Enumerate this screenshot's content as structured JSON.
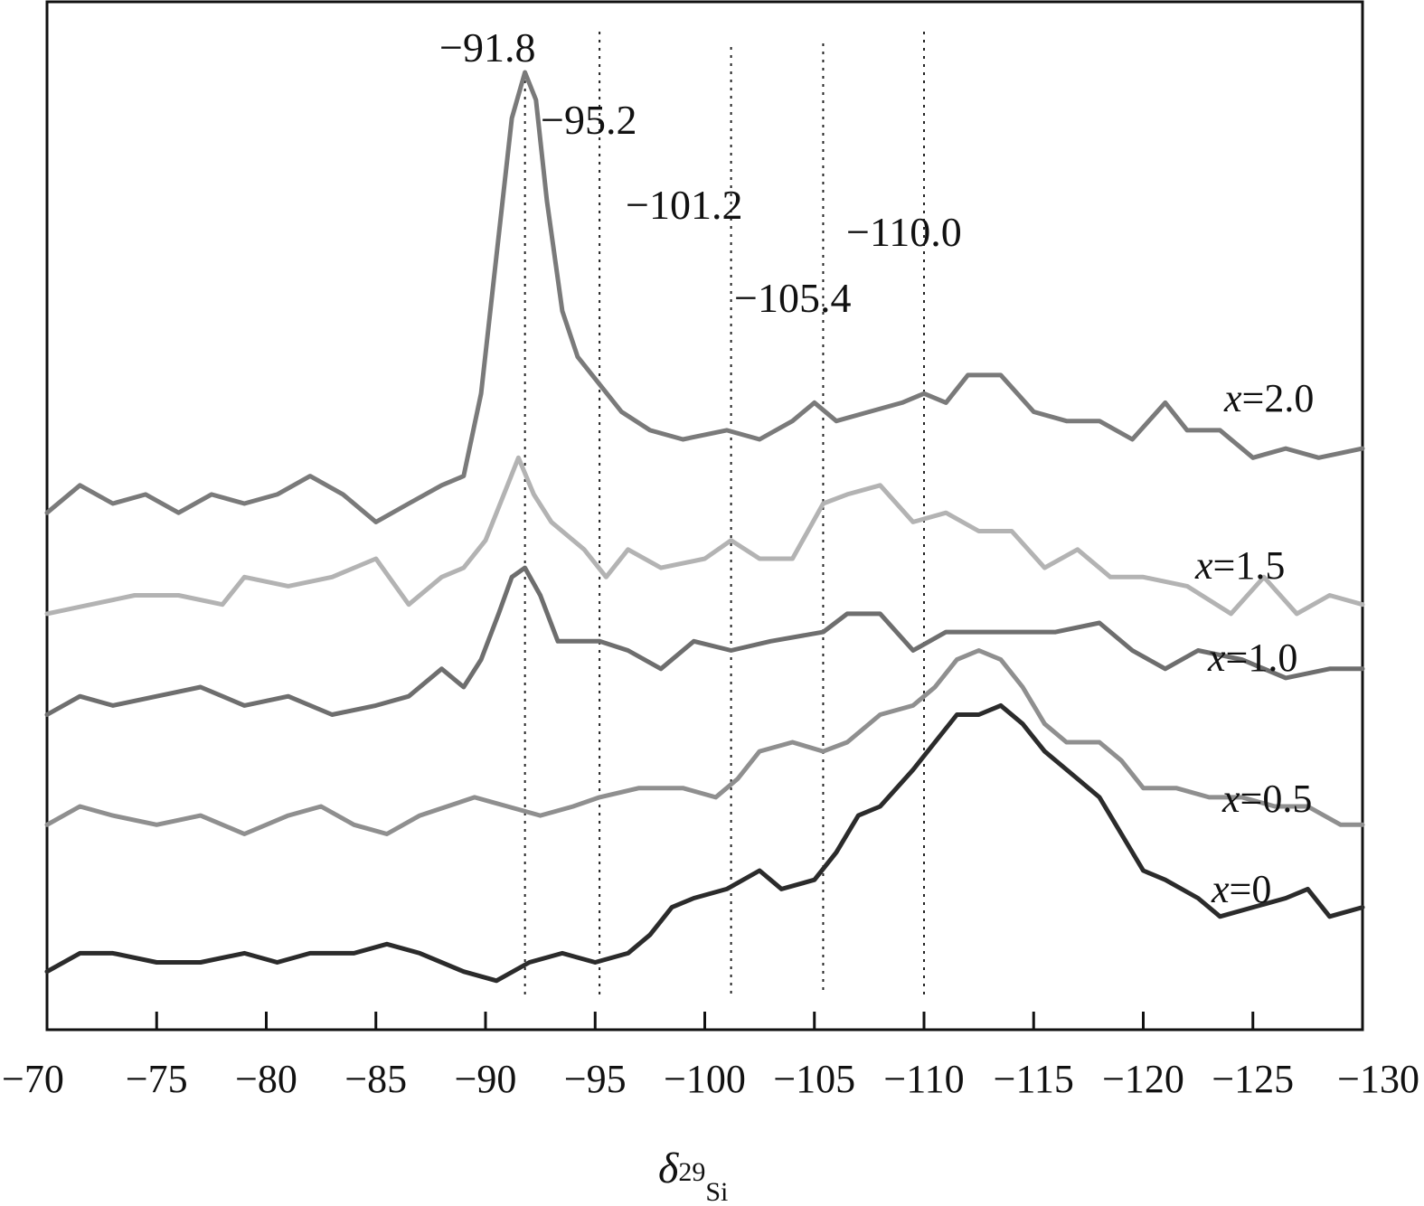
{
  "chart_data": {
    "type": "line",
    "xlabel_symbol": "δ",
    "xlabel_sup": "29",
    "xlabel_sub": "Si",
    "xlim": [
      -70,
      -130
    ],
    "x_ticks": [
      -70,
      -75,
      -80,
      -85,
      -90,
      -95,
      -100,
      -105,
      -110,
      -115,
      -120,
      -125,
      -130
    ],
    "x_tick_labels": [
      "−70",
      "−75",
      "−80",
      "−85",
      "−90",
      "−95",
      "−100",
      "−105",
      "−110",
      "−115",
      "−120",
      "−125",
      "−130"
    ],
    "reference_lines": [
      {
        "x": -91.8,
        "label": "−91.8"
      },
      {
        "x": -95.2,
        "label": "−95.2"
      },
      {
        "x": -101.2,
        "label": "−101.2"
      },
      {
        "x": -105.4,
        "label": "−105.4"
      },
      {
        "x": -110.0,
        "label": "−110.0"
      }
    ],
    "series": [
      {
        "name": "x=2.0",
        "label_var": "x",
        "label_value": "=2.0",
        "color": "#7a7a7a",
        "points": [
          [
            -70,
            0.52
          ],
          [
            -71.5,
            0.55
          ],
          [
            -73,
            0.53
          ],
          [
            -74.5,
            0.54
          ],
          [
            -76,
            0.52
          ],
          [
            -77.5,
            0.54
          ],
          [
            -79,
            0.53
          ],
          [
            -80.5,
            0.54
          ],
          [
            -82,
            0.56
          ],
          [
            -83.5,
            0.54
          ],
          [
            -85,
            0.51
          ],
          [
            -86.5,
            0.53
          ],
          [
            -88,
            0.55
          ],
          [
            -89,
            0.56
          ],
          [
            -89.8,
            0.65
          ],
          [
            -90.5,
            0.8
          ],
          [
            -91.2,
            0.95
          ],
          [
            -91.8,
            1.0
          ],
          [
            -92.3,
            0.97
          ],
          [
            -92.8,
            0.86
          ],
          [
            -93.5,
            0.74
          ],
          [
            -94.2,
            0.69
          ],
          [
            -95.2,
            0.66
          ],
          [
            -96.2,
            0.63
          ],
          [
            -97.5,
            0.61
          ],
          [
            -99,
            0.6
          ],
          [
            -101,
            0.61
          ],
          [
            -102.5,
            0.6
          ],
          [
            -104,
            0.62
          ],
          [
            -105,
            0.64
          ],
          [
            -106,
            0.62
          ],
          [
            -107.5,
            0.63
          ],
          [
            -109,
            0.64
          ],
          [
            -110,
            0.65
          ],
          [
            -111,
            0.64
          ],
          [
            -112,
            0.67
          ],
          [
            -113.5,
            0.67
          ],
          [
            -115,
            0.63
          ],
          [
            -116.5,
            0.62
          ],
          [
            -118,
            0.62
          ],
          [
            -119.5,
            0.6
          ],
          [
            -121,
            0.64
          ],
          [
            -122,
            0.61
          ],
          [
            -123.5,
            0.61
          ],
          [
            -125,
            0.58
          ],
          [
            -126.5,
            0.59
          ],
          [
            -128,
            0.58
          ],
          [
            -130,
            0.59
          ]
        ]
      },
      {
        "name": "x=1.5",
        "label_var": "x",
        "label_value": "=1.5",
        "color": "#b3b3b3",
        "points": [
          [
            -70,
            0.41
          ],
          [
            -72,
            0.42
          ],
          [
            -74,
            0.43
          ],
          [
            -76,
            0.43
          ],
          [
            -78,
            0.42
          ],
          [
            -79,
            0.45
          ],
          [
            -81,
            0.44
          ],
          [
            -83,
            0.45
          ],
          [
            -85,
            0.47
          ],
          [
            -86.5,
            0.42
          ],
          [
            -88,
            0.45
          ],
          [
            -89,
            0.46
          ],
          [
            -90,
            0.49
          ],
          [
            -91,
            0.55
          ],
          [
            -91.5,
            0.58
          ],
          [
            -92.2,
            0.54
          ],
          [
            -93,
            0.51
          ],
          [
            -94.5,
            0.48
          ],
          [
            -95.5,
            0.45
          ],
          [
            -96.5,
            0.48
          ],
          [
            -98,
            0.46
          ],
          [
            -100,
            0.47
          ],
          [
            -101.2,
            0.49
          ],
          [
            -102.5,
            0.47
          ],
          [
            -104,
            0.47
          ],
          [
            -105.4,
            0.53
          ],
          [
            -106.5,
            0.54
          ],
          [
            -108,
            0.55
          ],
          [
            -109.5,
            0.51
          ],
          [
            -111,
            0.52
          ],
          [
            -112.5,
            0.5
          ],
          [
            -114,
            0.5
          ],
          [
            -115.5,
            0.46
          ],
          [
            -117,
            0.48
          ],
          [
            -118.5,
            0.45
          ],
          [
            -120,
            0.45
          ],
          [
            -122,
            0.44
          ],
          [
            -124,
            0.41
          ],
          [
            -125.5,
            0.45
          ],
          [
            -127,
            0.41
          ],
          [
            -128.5,
            0.43
          ],
          [
            -130,
            0.42
          ]
        ]
      },
      {
        "name": "x=1.0",
        "label_var": "x",
        "label_value": "=1.0",
        "color": "#6e6e6e",
        "points": [
          [
            -70,
            0.3
          ],
          [
            -71.5,
            0.32
          ],
          [
            -73,
            0.31
          ],
          [
            -75,
            0.32
          ],
          [
            -77,
            0.33
          ],
          [
            -79,
            0.31
          ],
          [
            -81,
            0.32
          ],
          [
            -83,
            0.3
          ],
          [
            -85,
            0.31
          ],
          [
            -86.5,
            0.32
          ],
          [
            -88,
            0.35
          ],
          [
            -89,
            0.33
          ],
          [
            -89.8,
            0.36
          ],
          [
            -90.6,
            0.41
          ],
          [
            -91.2,
            0.45
          ],
          [
            -91.8,
            0.46
          ],
          [
            -92.5,
            0.43
          ],
          [
            -93.3,
            0.38
          ],
          [
            -95.2,
            0.38
          ],
          [
            -96.5,
            0.37
          ],
          [
            -98,
            0.35
          ],
          [
            -99.5,
            0.38
          ],
          [
            -101.2,
            0.37
          ],
          [
            -103,
            0.38
          ],
          [
            -105.4,
            0.39
          ],
          [
            -106.5,
            0.41
          ],
          [
            -108,
            0.41
          ],
          [
            -109.5,
            0.37
          ],
          [
            -111,
            0.39
          ],
          [
            -113,
            0.39
          ],
          [
            -114.5,
            0.39
          ],
          [
            -116,
            0.39
          ],
          [
            -118,
            0.4
          ],
          [
            -119.5,
            0.37
          ],
          [
            -121,
            0.35
          ],
          [
            -122.5,
            0.37
          ],
          [
            -124.5,
            0.36
          ],
          [
            -126.5,
            0.34
          ],
          [
            -128.5,
            0.35
          ],
          [
            -130,
            0.35
          ]
        ]
      },
      {
        "name": "x=0.5",
        "label_var": "x",
        "label_value": "=0.5",
        "color": "#8f8f8f",
        "points": [
          [
            -70,
            0.18
          ],
          [
            -71.5,
            0.2
          ],
          [
            -73,
            0.19
          ],
          [
            -75,
            0.18
          ],
          [
            -77,
            0.19
          ],
          [
            -79,
            0.17
          ],
          [
            -81,
            0.19
          ],
          [
            -82.5,
            0.2
          ],
          [
            -84,
            0.18
          ],
          [
            -85.5,
            0.17
          ],
          [
            -87,
            0.19
          ],
          [
            -89.5,
            0.21
          ],
          [
            -91,
            0.2
          ],
          [
            -92.5,
            0.19
          ],
          [
            -94,
            0.2
          ],
          [
            -95.2,
            0.21
          ],
          [
            -97,
            0.22
          ],
          [
            -99,
            0.22
          ],
          [
            -100.5,
            0.21
          ],
          [
            -101.5,
            0.23
          ],
          [
            -102.5,
            0.26
          ],
          [
            -104,
            0.27
          ],
          [
            -105.4,
            0.26
          ],
          [
            -106.5,
            0.27
          ],
          [
            -108,
            0.3
          ],
          [
            -109.5,
            0.31
          ],
          [
            -110.5,
            0.33
          ],
          [
            -111.5,
            0.36
          ],
          [
            -112.5,
            0.37
          ],
          [
            -113.5,
            0.36
          ],
          [
            -114.5,
            0.33
          ],
          [
            -115.5,
            0.29
          ],
          [
            -116.5,
            0.27
          ],
          [
            -118,
            0.27
          ],
          [
            -119,
            0.25
          ],
          [
            -120,
            0.22
          ],
          [
            -121.5,
            0.22
          ],
          [
            -123,
            0.21
          ],
          [
            -124.5,
            0.21
          ],
          [
            -126,
            0.2
          ],
          [
            -127.5,
            0.2
          ],
          [
            -129,
            0.18
          ],
          [
            -130,
            0.18
          ]
        ]
      },
      {
        "name": "x=0",
        "label_var": "x",
        "label_value": "=0",
        "color": "#2b2b2b",
        "points": [
          [
            -70,
            0.02
          ],
          [
            -71.5,
            0.04
          ],
          [
            -73,
            0.04
          ],
          [
            -75,
            0.03
          ],
          [
            -77,
            0.03
          ],
          [
            -79,
            0.04
          ],
          [
            -80.5,
            0.03
          ],
          [
            -82,
            0.04
          ],
          [
            -84,
            0.04
          ],
          [
            -85.5,
            0.05
          ],
          [
            -87,
            0.04
          ],
          [
            -89,
            0.02
          ],
          [
            -90.5,
            0.01
          ],
          [
            -92,
            0.03
          ],
          [
            -93.5,
            0.04
          ],
          [
            -95,
            0.03
          ],
          [
            -96.5,
            0.04
          ],
          [
            -97.5,
            0.06
          ],
          [
            -98.5,
            0.09
          ],
          [
            -99.5,
            0.1
          ],
          [
            -101,
            0.11
          ],
          [
            -102.5,
            0.13
          ],
          [
            -103.5,
            0.11
          ],
          [
            -105,
            0.12
          ],
          [
            -106,
            0.15
          ],
          [
            -107,
            0.19
          ],
          [
            -108,
            0.2
          ],
          [
            -109.5,
            0.24
          ],
          [
            -110.5,
            0.27
          ],
          [
            -111.5,
            0.3
          ],
          [
            -112.5,
            0.3
          ],
          [
            -113.5,
            0.31
          ],
          [
            -114.5,
            0.29
          ],
          [
            -115.5,
            0.26
          ],
          [
            -117,
            0.23
          ],
          [
            -118,
            0.21
          ],
          [
            -119,
            0.17
          ],
          [
            -120,
            0.13
          ],
          [
            -121,
            0.12
          ],
          [
            -122.5,
            0.1
          ],
          [
            -123.5,
            0.08
          ],
          [
            -125,
            0.09
          ],
          [
            -126.5,
            0.1
          ],
          [
            -127.5,
            0.11
          ],
          [
            -128.5,
            0.08
          ],
          [
            -130,
            0.09
          ]
        ]
      }
    ]
  }
}
